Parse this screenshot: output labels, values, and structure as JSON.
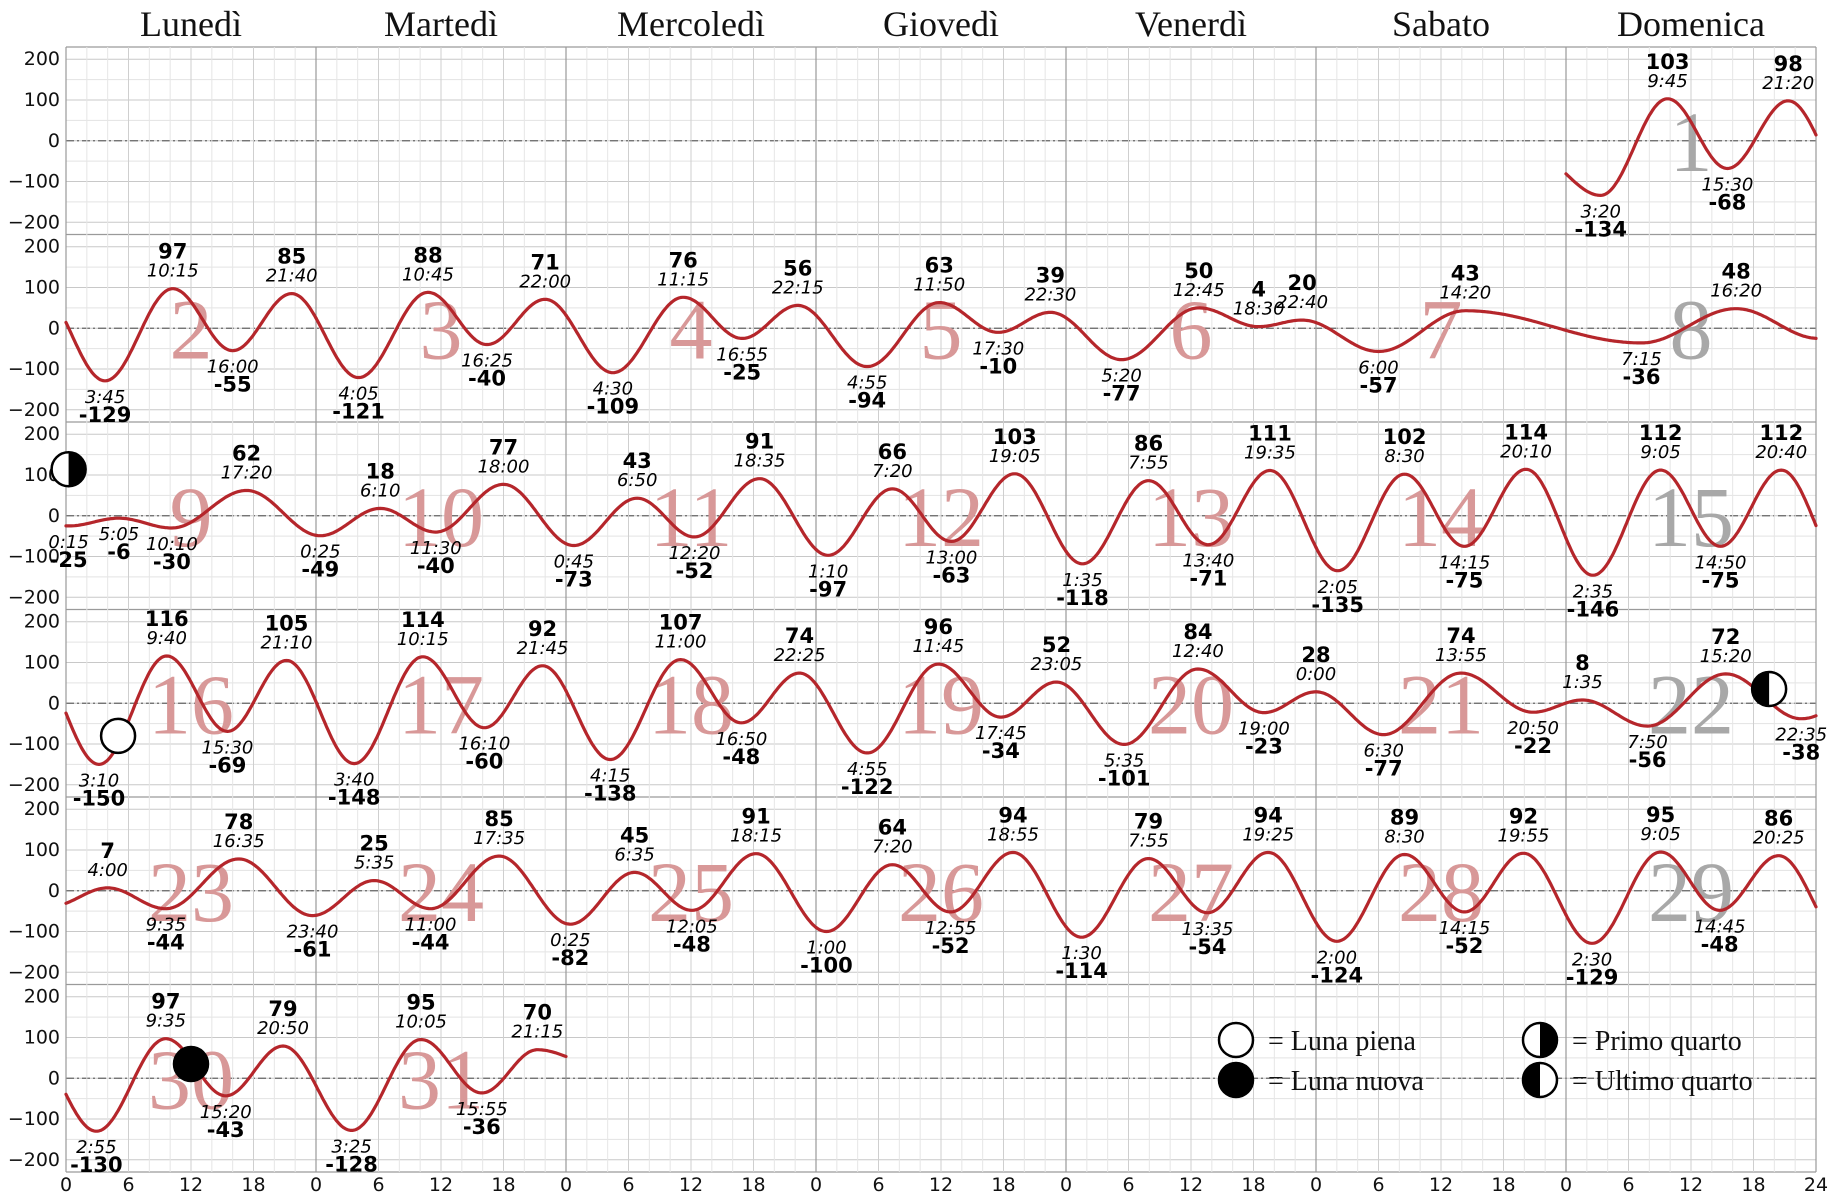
{
  "chart_data": {
    "type": "line",
    "day_headers": [
      "Lunedì",
      "Martedì",
      "Mercoledì",
      "Giovedì",
      "Venerdì",
      "Sabato",
      "Domenica"
    ],
    "x_ticks": [
      "0",
      "6",
      "12",
      "18"
    ],
    "x_last_tick": "24",
    "y_ticks": [
      "200",
      "100",
      "0",
      "−100",
      "−200"
    ],
    "ylim": [
      -230,
      230
    ],
    "grid": true,
    "line_color": "#b5262b",
    "weekday_number_color": "#d89898",
    "sunday_number_color": "#a8a8a8",
    "first_weekday_of_month": 6,
    "days": [
      {
        "day": "1",
        "events": [
          {
            "t": "3:20",
            "v": "-134"
          },
          {
            "t": "9:45",
            "v": "103"
          },
          {
            "t": "15:30",
            "v": "-68"
          },
          {
            "t": "21:20",
            "v": "98"
          }
        ]
      },
      {
        "day": "2",
        "events": [
          {
            "t": "3:45",
            "v": "-129"
          },
          {
            "t": "10:15",
            "v": "97"
          },
          {
            "t": "16:00",
            "v": "-55"
          },
          {
            "t": "21:40",
            "v": "85"
          }
        ]
      },
      {
        "day": "3",
        "events": [
          {
            "t": "4:05",
            "v": "-121"
          },
          {
            "t": "10:45",
            "v": "88"
          },
          {
            "t": "16:25",
            "v": "-40"
          },
          {
            "t": "22:00",
            "v": "71"
          }
        ]
      },
      {
        "day": "4",
        "events": [
          {
            "t": "4:30",
            "v": "-109"
          },
          {
            "t": "11:15",
            "v": "76"
          },
          {
            "t": "16:55",
            "v": "-25"
          },
          {
            "t": "22:15",
            "v": "56"
          }
        ]
      },
      {
        "day": "5",
        "events": [
          {
            "t": "4:55",
            "v": "-94"
          },
          {
            "t": "11:50",
            "v": "63"
          },
          {
            "t": "17:30",
            "v": "-10"
          },
          {
            "t": "22:30",
            "v": "39"
          }
        ]
      },
      {
        "day": "6",
        "events": [
          {
            "t": "5:20",
            "v": "-77"
          },
          {
            "t": "12:45",
            "v": "50"
          },
          {
            "t": "18:30",
            "v": "4"
          },
          {
            "t": "22:40",
            "v": "20"
          }
        ]
      },
      {
        "day": "7",
        "events": [
          {
            "t": "6:00",
            "v": "-57"
          },
          {
            "t": "14:20",
            "v": "43"
          }
        ]
      },
      {
        "day": "8",
        "events": [
          {
            "t": "7:15",
            "v": "-36"
          },
          {
            "t": "16:20",
            "v": "48"
          }
        ]
      },
      {
        "day": "9",
        "events": [
          {
            "t": "0:15",
            "v": "-25"
          },
          {
            "t": "5:05",
            "v": "-6"
          },
          {
            "t": "10:10",
            "v": "-30"
          },
          {
            "t": "17:20",
            "v": "62"
          }
        ]
      },
      {
        "day": "10",
        "events": [
          {
            "t": "0:25",
            "v": "-49"
          },
          {
            "t": "6:10",
            "v": "18"
          },
          {
            "t": "11:30",
            "v": "-40"
          },
          {
            "t": "18:00",
            "v": "77"
          }
        ]
      },
      {
        "day": "11",
        "events": [
          {
            "t": "0:45",
            "v": "-73"
          },
          {
            "t": "6:50",
            "v": "43"
          },
          {
            "t": "12:20",
            "v": "-52"
          },
          {
            "t": "18:35",
            "v": "91"
          }
        ]
      },
      {
        "day": "12",
        "events": [
          {
            "t": "1:10",
            "v": "-97"
          },
          {
            "t": "7:20",
            "v": "66"
          },
          {
            "t": "13:00",
            "v": "-63"
          },
          {
            "t": "19:05",
            "v": "103"
          }
        ]
      },
      {
        "day": "13",
        "events": [
          {
            "t": "1:35",
            "v": "-118"
          },
          {
            "t": "7:55",
            "v": "86"
          },
          {
            "t": "13:40",
            "v": "-71"
          },
          {
            "t": "19:35",
            "v": "111"
          }
        ]
      },
      {
        "day": "14",
        "events": [
          {
            "t": "2:05",
            "v": "-135"
          },
          {
            "t": "8:30",
            "v": "102"
          },
          {
            "t": "14:15",
            "v": "-75"
          },
          {
            "t": "20:10",
            "v": "114"
          }
        ]
      },
      {
        "day": "15",
        "events": [
          {
            "t": "2:35",
            "v": "-146"
          },
          {
            "t": "9:05",
            "v": "112"
          },
          {
            "t": "14:50",
            "v": "-75"
          },
          {
            "t": "20:40",
            "v": "112"
          }
        ]
      },
      {
        "day": "16",
        "events": [
          {
            "t": "3:10",
            "v": "-150"
          },
          {
            "t": "9:40",
            "v": "116"
          },
          {
            "t": "15:30",
            "v": "-69"
          },
          {
            "t": "21:10",
            "v": "105"
          }
        ]
      },
      {
        "day": "17",
        "events": [
          {
            "t": "3:40",
            "v": "-148"
          },
          {
            "t": "10:15",
            "v": "114"
          },
          {
            "t": "16:10",
            "v": "-60"
          },
          {
            "t": "21:45",
            "v": "92"
          }
        ]
      },
      {
        "day": "18",
        "events": [
          {
            "t": "4:15",
            "v": "-138"
          },
          {
            "t": "11:00",
            "v": "107"
          },
          {
            "t": "16:50",
            "v": "-48"
          },
          {
            "t": "22:25",
            "v": "74"
          }
        ]
      },
      {
        "day": "19",
        "events": [
          {
            "t": "4:55",
            "v": "-122"
          },
          {
            "t": "11:45",
            "v": "96"
          },
          {
            "t": "17:45",
            "v": "-34"
          },
          {
            "t": "23:05",
            "v": "52"
          }
        ]
      },
      {
        "day": "20",
        "events": [
          {
            "t": "5:35",
            "v": "-101"
          },
          {
            "t": "12:40",
            "v": "84"
          },
          {
            "t": "19:00",
            "v": "-23"
          }
        ]
      },
      {
        "day": "21",
        "events": [
          {
            "t": "0:00",
            "v": "28"
          },
          {
            "t": "6:30",
            "v": "-77"
          },
          {
            "t": "13:55",
            "v": "74"
          },
          {
            "t": "20:50",
            "v": "-22"
          }
        ]
      },
      {
        "day": "22",
        "events": [
          {
            "t": "1:35",
            "v": "8"
          },
          {
            "t": "7:50",
            "v": "-56"
          },
          {
            "t": "15:20",
            "v": "72"
          },
          {
            "t": "22:35",
            "v": "-38"
          }
        ]
      },
      {
        "day": "23",
        "events": [
          {
            "t": "4:00",
            "v": "7"
          },
          {
            "t": "9:35",
            "v": "-44"
          },
          {
            "t": "16:35",
            "v": "78"
          },
          {
            "t": "23:40",
            "v": "-61"
          }
        ]
      },
      {
        "day": "24",
        "events": [
          {
            "t": "5:35",
            "v": "25"
          },
          {
            "t": "11:00",
            "v": "-44"
          },
          {
            "t": "17:35",
            "v": "85"
          }
        ]
      },
      {
        "day": "25",
        "events": [
          {
            "t": "0:25",
            "v": "-82"
          },
          {
            "t": "6:35",
            "v": "45"
          },
          {
            "t": "12:05",
            "v": "-48"
          },
          {
            "t": "18:15",
            "v": "91"
          }
        ]
      },
      {
        "day": "26",
        "events": [
          {
            "t": "1:00",
            "v": "-100"
          },
          {
            "t": "7:20",
            "v": "64"
          },
          {
            "t": "12:55",
            "v": "-52"
          },
          {
            "t": "18:55",
            "v": "94"
          }
        ]
      },
      {
        "day": "27",
        "events": [
          {
            "t": "1:30",
            "v": "-114"
          },
          {
            "t": "7:55",
            "v": "79"
          },
          {
            "t": "13:35",
            "v": "-54"
          },
          {
            "t": "19:25",
            "v": "94"
          }
        ]
      },
      {
        "day": "28",
        "events": [
          {
            "t": "2:00",
            "v": "-124"
          },
          {
            "t": "8:30",
            "v": "89"
          },
          {
            "t": "14:15",
            "v": "-52"
          },
          {
            "t": "19:55",
            "v": "92"
          }
        ]
      },
      {
        "day": "29",
        "events": [
          {
            "t": "2:30",
            "v": "-129"
          },
          {
            "t": "9:05",
            "v": "95"
          },
          {
            "t": "14:45",
            "v": "-48"
          },
          {
            "t": "20:25",
            "v": "86"
          }
        ]
      },
      {
        "day": "30",
        "events": [
          {
            "t": "2:55",
            "v": "-130"
          },
          {
            "t": "9:35",
            "v": "97"
          },
          {
            "t": "15:20",
            "v": "-43"
          },
          {
            "t": "20:50",
            "v": "79"
          }
        ]
      },
      {
        "day": "31",
        "events": [
          {
            "t": "3:25",
            "v": "-128"
          },
          {
            "t": "10:05",
            "v": "95"
          },
          {
            "t": "15:55",
            "v": "-36"
          },
          {
            "t": "21:15",
            "v": "70"
          }
        ]
      }
    ],
    "moon_phases": [
      {
        "day": "9",
        "t": "0:15",
        "v": "114",
        "phase": "first-quarter"
      },
      {
        "day": "16",
        "t": "5:00",
        "v": "-80",
        "phase": "full"
      },
      {
        "day": "22",
        "t": "19:30",
        "v": "35",
        "phase": "last-quarter"
      },
      {
        "day": "30",
        "t": "12:00",
        "v": "35",
        "phase": "new"
      }
    ],
    "legend": [
      {
        "phase": "full",
        "label": "= Luna piena"
      },
      {
        "phase": "new",
        "label": "= Luna nuova"
      },
      {
        "phase": "first-quarter",
        "label": "= Primo quarto"
      },
      {
        "phase": "last-quarter",
        "label": "= Ultimo quarto"
      }
    ]
  }
}
